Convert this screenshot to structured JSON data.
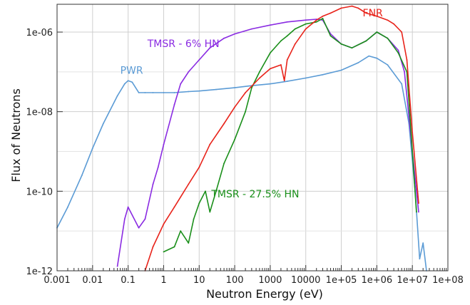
{
  "chart_data": {
    "type": "line",
    "title": "",
    "xlabel": "Neutron Energy (eV)",
    "ylabel": "Flux of Neutrons",
    "x_scale": "log",
    "y_scale": "log",
    "xlim": [
      0.001,
      100000000
    ],
    "ylim": [
      1e-12,
      5e-06
    ],
    "grid": true,
    "legend": "inline labels",
    "x_ticks": [
      {
        "value": 0.001,
        "label": "0.001"
      },
      {
        "value": 0.01,
        "label": "0.01"
      },
      {
        "value": 0.1,
        "label": "0.1"
      },
      {
        "value": 1,
        "label": "1"
      },
      {
        "value": 10,
        "label": "10"
      },
      {
        "value": 100,
        "label": "100"
      },
      {
        "value": 1000,
        "label": "1000"
      },
      {
        "value": 10000,
        "label": "10000"
      },
      {
        "value": 100000,
        "label": "1e+05"
      },
      {
        "value": 1000000,
        "label": "1e+06"
      },
      {
        "value": 10000000,
        "label": "1e+07"
      },
      {
        "value": 100000000,
        "label": "1e+08"
      }
    ],
    "y_ticks": [
      {
        "value": 1e-12,
        "label": "1e-12"
      },
      {
        "value": 1e-10,
        "label": "1e-10"
      },
      {
        "value": 1e-08,
        "label": "1e-08"
      },
      {
        "value": 1e-06,
        "label": "1e-06"
      }
    ],
    "series": [
      {
        "name": "PWR",
        "color": "#5b9bd5",
        "x": [
          0.001,
          0.002,
          0.005,
          0.01,
          0.02,
          0.05,
          0.08,
          0.1,
          0.13,
          0.2,
          0.3,
          0.5,
          1,
          2,
          5,
          10,
          30,
          100,
          300,
          1000,
          3000,
          10000,
          30000,
          100000,
          300000,
          600000,
          1000000,
          2000000,
          5000000,
          8000000,
          12000000,
          16000000,
          20000000,
          25000000
        ],
        "y": [
          1.2e-11,
          4e-11,
          2.5e-10,
          1.2e-09,
          5e-09,
          2.5e-08,
          5e-08,
          6e-08,
          5.5e-08,
          3e-08,
          3e-08,
          3e-08,
          3e-08,
          3e-08,
          3.2e-08,
          3.3e-08,
          3.6e-08,
          4e-08,
          4.5e-08,
          5e-08,
          5.8e-08,
          7e-08,
          8.5e-08,
          1.1e-07,
          1.7e-07,
          2.5e-07,
          2.2e-07,
          1.5e-07,
          5e-08,
          5e-09,
          1e-10,
          2e-12,
          5e-12,
          1e-12
        ]
      },
      {
        "name": "TMSR - 6% HN",
        "color": "#8a2be2",
        "x": [
          0.05,
          0.08,
          0.1,
          0.2,
          0.3,
          0.5,
          0.7,
          1,
          2,
          3,
          5,
          10,
          20,
          50,
          100,
          300,
          1000,
          3000,
          10000,
          20000,
          30000,
          50000,
          100000,
          200000,
          500000,
          1000000,
          2000000,
          4000000,
          6000000,
          10000000,
          15000000
        ],
        "y": [
          1.3e-12,
          2e-11,
          4e-11,
          1.2e-11,
          2e-11,
          1.5e-10,
          4e-10,
          1.5e-09,
          1.5e-08,
          5e-08,
          1e-07,
          2e-07,
          4e-07,
          7e-07,
          9e-07,
          1.2e-06,
          1.5e-06,
          1.8e-06,
          2e-06,
          2.1e-06,
          2e-06,
          9e-07,
          5e-07,
          4e-07,
          6e-07,
          1e-06,
          7e-07,
          3.5e-07,
          1e-07,
          1e-09,
          3e-11
        ]
      },
      {
        "name": "TMSR - 27.5% HN",
        "color": "#1a8f1a",
        "x": [
          1,
          2,
          3,
          5,
          7,
          10,
          15,
          20,
          30,
          50,
          100,
          200,
          300,
          500,
          1000,
          2000,
          3000,
          5000,
          10000,
          20000,
          30000,
          50000,
          100000,
          200000,
          500000,
          1000000,
          2000000,
          4000000,
          7000000,
          10000000,
          13000000
        ],
        "y": [
          3e-12,
          4e-12,
          1e-11,
          5e-12,
          2e-11,
          5e-11,
          1e-10,
          3e-11,
          1e-10,
          5e-10,
          2e-09,
          1e-08,
          4e-08,
          1e-07,
          3e-07,
          6e-07,
          8e-07,
          1.2e-06,
          1.6e-06,
          1.8e-06,
          2.2e-06,
          8e-07,
          5e-07,
          4e-07,
          6e-07,
          1e-06,
          7e-07,
          3e-07,
          1e-07,
          1e-09,
          3e-11
        ]
      },
      {
        "name": "FNR",
        "color": "#e8231a",
        "x": [
          0.3,
          0.5,
          1,
          2,
          5,
          10,
          20,
          50,
          100,
          200,
          500,
          1000,
          2000,
          2500,
          3000,
          5000,
          10000,
          20000,
          30000,
          50000,
          100000,
          200000,
          300000,
          500000,
          1000000,
          2000000,
          3000000,
          5000000,
          7000000,
          10000000,
          15000000
        ],
        "y": [
          1e-12,
          4e-12,
          1.5e-11,
          4e-11,
          1.5e-10,
          4e-10,
          1.5e-09,
          5e-09,
          1.3e-08,
          3e-08,
          7e-08,
          1.2e-07,
          1.5e-07,
          6e-08,
          2e-07,
          5e-07,
          1.2e-06,
          2e-06,
          2.5e-06,
          3e-06,
          4e-06,
          4.5e-06,
          4e-06,
          3e-06,
          2.5e-06,
          2e-06,
          1.6e-06,
          1e-06,
          2e-07,
          3e-09,
          5e-11
        ]
      }
    ],
    "annotations": [
      {
        "text": "PWR",
        "series": "PWR",
        "x": 0.06,
        "y": 9e-08
      },
      {
        "text": "TMSR - 6% HN",
        "series": "TMSR - 6% HN",
        "x": 0.35,
        "y": 4.2e-07
      },
      {
        "text": "TMSR - 27.5% HN",
        "series": "TMSR - 27.5% HN",
        "x": 22,
        "y": 7e-11
      },
      {
        "text": "FNR",
        "series": "FNR",
        "x": 400000,
        "y": 2.5e-06
      }
    ]
  }
}
